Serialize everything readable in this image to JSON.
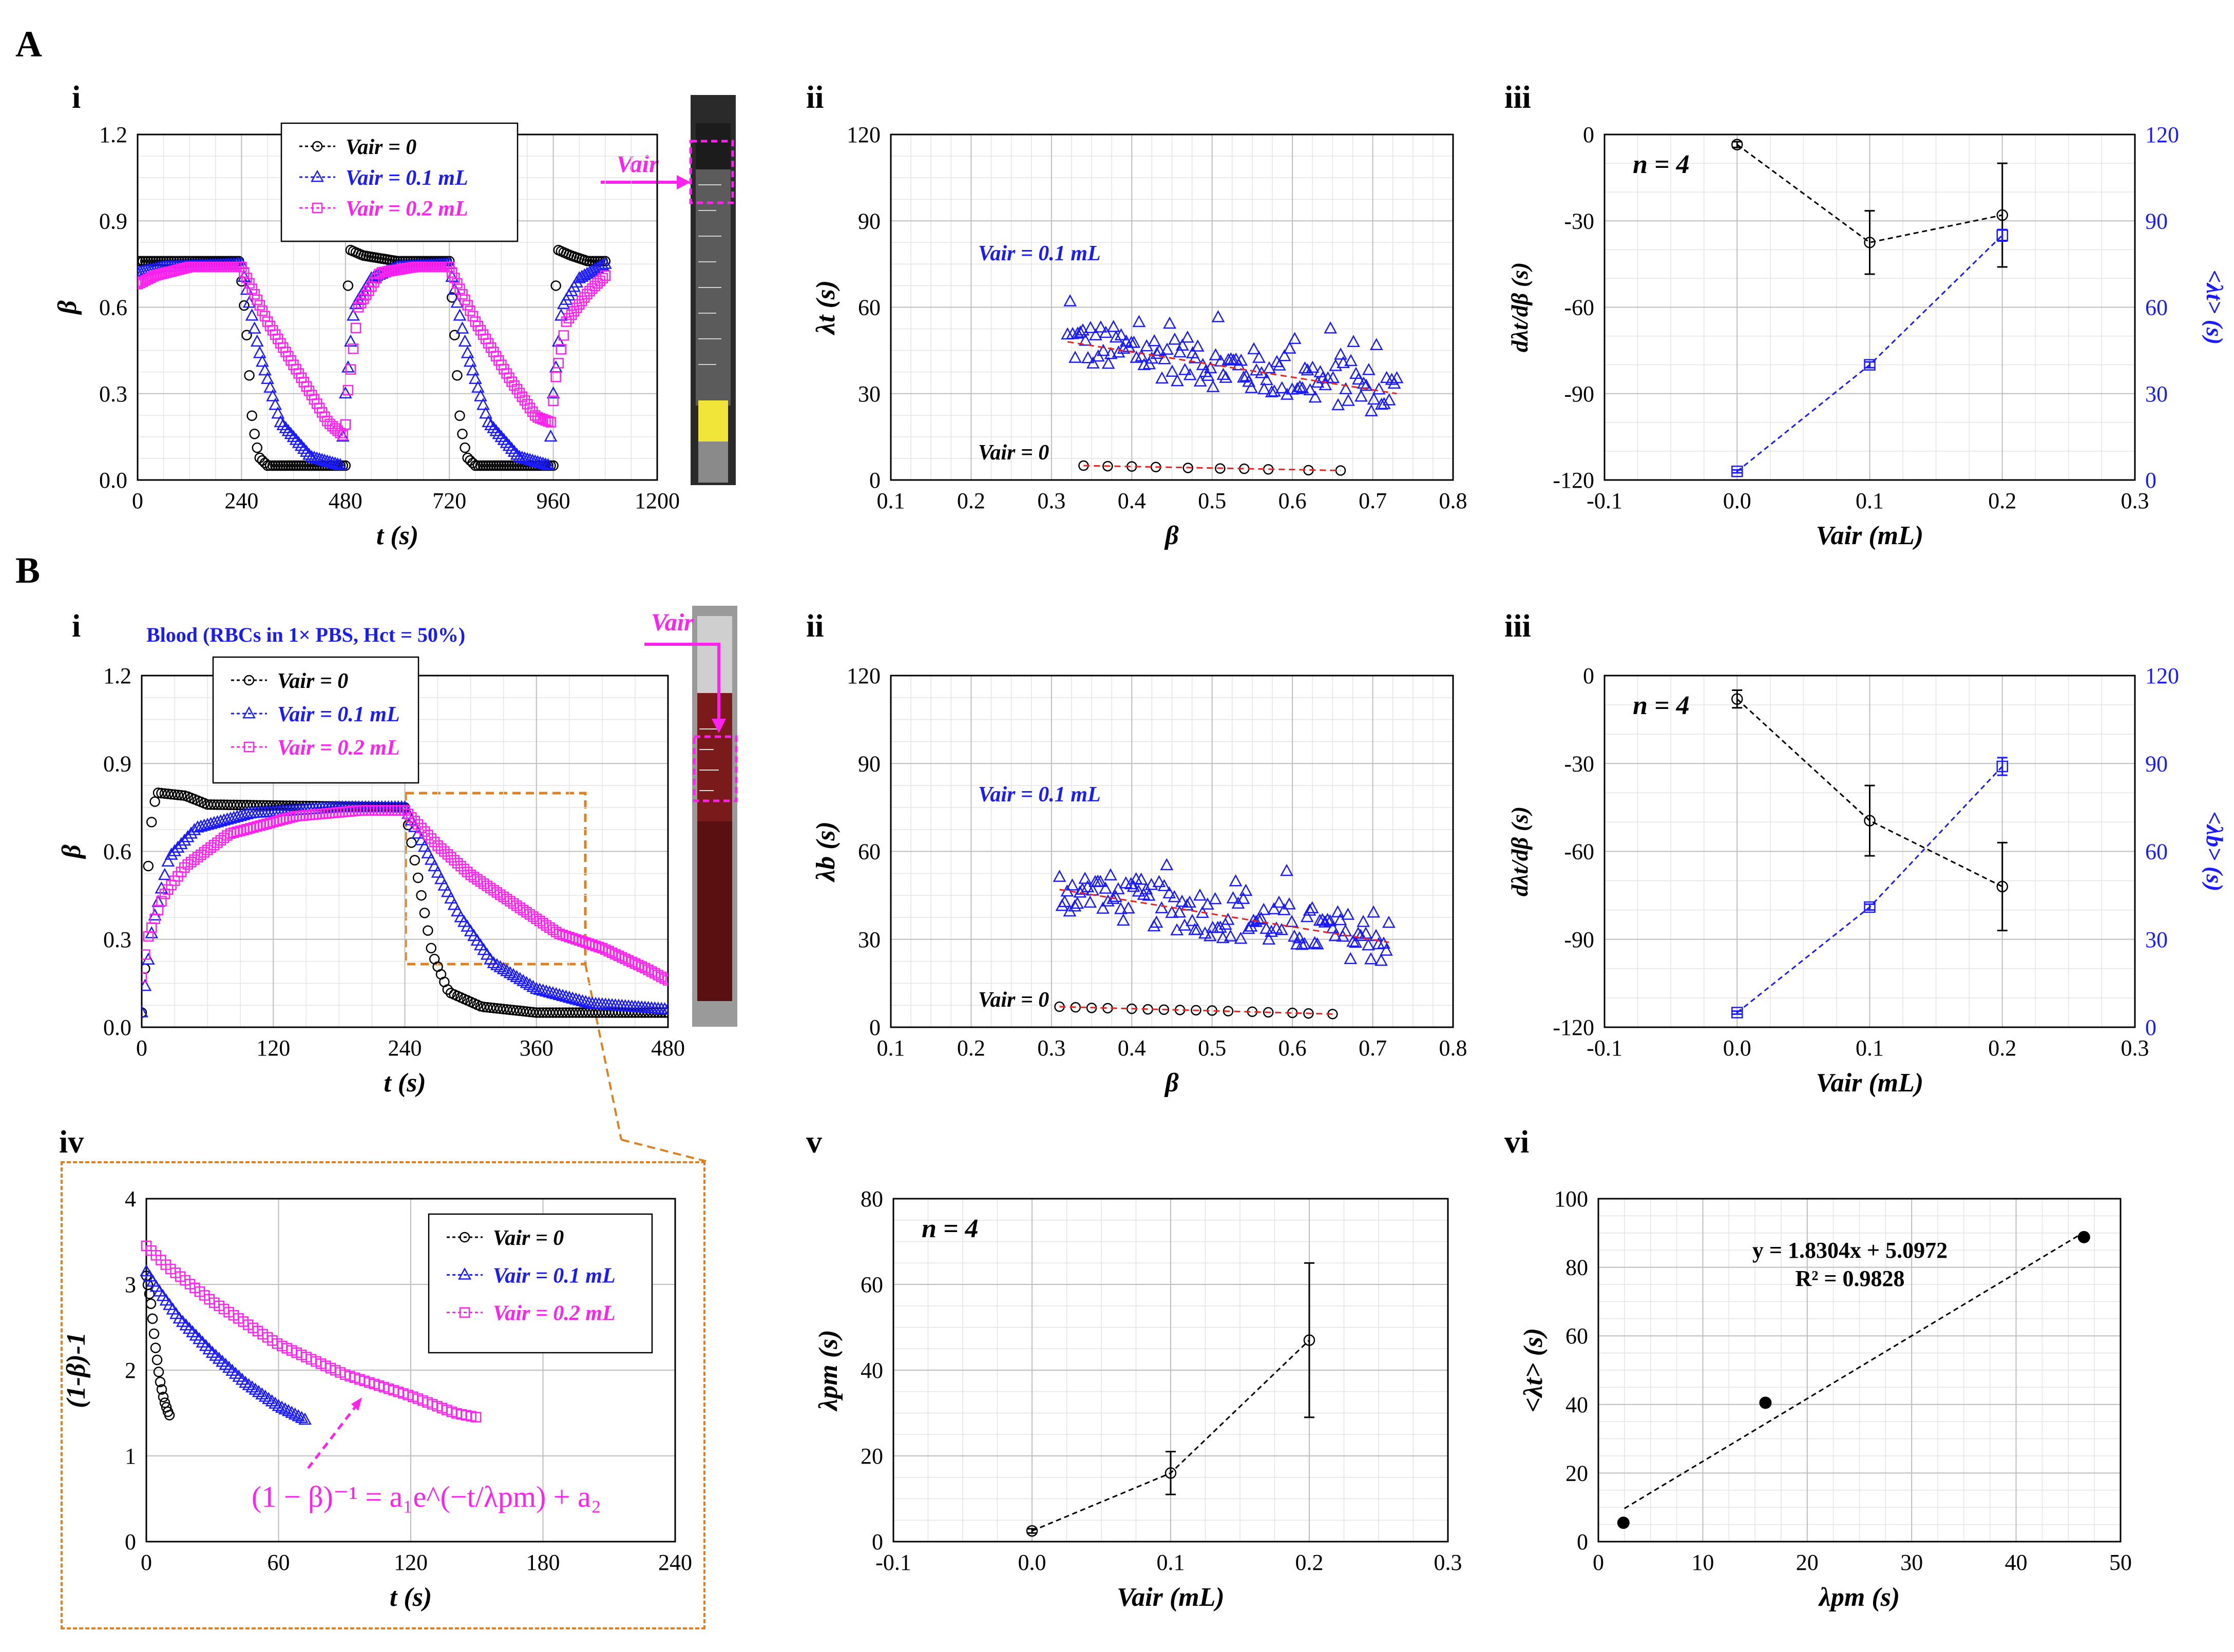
{
  "labels": {
    "section_a": "A",
    "section_b": "B",
    "panel_i": "i",
    "panel_ii": "ii",
    "panel_iii": "iii",
    "panel_iv": "iv",
    "panel_v": "v",
    "panel_vi": "vi",
    "vair_tag": "Vair",
    "blood_title": "Blood (RBCs in 1× PBS, Hct = 50%)",
    "fit_equation": "(1 − β)⁻¹ = a₁e^(−t/λpm) + a₂"
  },
  "colors": {
    "black": "#000000",
    "blue": "#1a1aff",
    "magenta": "#ff22ee",
    "red_fit": "#e8231f",
    "orange": "#e07f1d"
  },
  "chart_data": [
    {
      "id": "A-i",
      "type": "scatter",
      "xlabel": "t (s)",
      "ylabel": "β",
      "xlim": [
        0,
        1200
      ],
      "ylim": [
        0,
        1.2
      ],
      "xticks": [
        0,
        240,
        480,
        720,
        960,
        1200
      ],
      "yticks": [
        0.0,
        0.3,
        0.6,
        0.9,
        1.2
      ],
      "legend": [
        "Vair = 0",
        "Vair = 0.1 mL",
        "Vair = 0.2 mL"
      ],
      "series": [
        {
          "name": "Vair = 0",
          "marker": "circle",
          "color": "#000000",
          "keys": [
            [
              0,
              0.76
            ],
            [
              235,
              0.76
            ],
            [
              250,
              0.55
            ],
            [
              265,
              0.2
            ],
            [
              280,
              0.08
            ],
            [
              300,
              0.05
            ],
            [
              480,
              0.05
            ],
            [
              482,
              0.55
            ],
            [
              490,
              0.8
            ],
            [
              520,
              0.78
            ],
            [
              600,
              0.76
            ],
            [
              720,
              0.76
            ],
            [
              730,
              0.55
            ],
            [
              745,
              0.2
            ],
            [
              760,
              0.08
            ],
            [
              780,
              0.05
            ],
            [
              960,
              0.05
            ],
            [
              962,
              0.55
            ],
            [
              970,
              0.8
            ],
            [
              1000,
              0.78
            ],
            [
              1040,
              0.76
            ],
            [
              1080,
              0.76
            ]
          ]
        },
        {
          "name": "Vair = 0.1 mL",
          "marker": "triangle",
          "color": "#1a1aff",
          "keys": [
            [
              0,
              0.72
            ],
            [
              60,
              0.74
            ],
            [
              240,
              0.75
            ],
            [
              280,
              0.45
            ],
            [
              330,
              0.2
            ],
            [
              400,
              0.08
            ],
            [
              470,
              0.05
            ],
            [
              480,
              0.3
            ],
            [
              500,
              0.6
            ],
            [
              540,
              0.7
            ],
            [
              600,
              0.74
            ],
            [
              720,
              0.75
            ],
            [
              760,
              0.45
            ],
            [
              810,
              0.2
            ],
            [
              880,
              0.08
            ],
            [
              950,
              0.05
            ],
            [
              960,
              0.3
            ],
            [
              980,
              0.6
            ],
            [
              1020,
              0.7
            ],
            [
              1080,
              0.75
            ]
          ]
        },
        {
          "name": "Vair = 0.2 mL",
          "marker": "square",
          "color": "#ff22ee",
          "keys": [
            [
              0,
              0.68
            ],
            [
              40,
              0.71
            ],
            [
              120,
              0.74
            ],
            [
              240,
              0.74
            ],
            [
              300,
              0.55
            ],
            [
              380,
              0.35
            ],
            [
              440,
              0.2
            ],
            [
              478,
              0.15
            ],
            [
              485,
              0.3
            ],
            [
              510,
              0.6
            ],
            [
              560,
              0.72
            ],
            [
              640,
              0.74
            ],
            [
              720,
              0.74
            ],
            [
              780,
              0.55
            ],
            [
              860,
              0.35
            ],
            [
              920,
              0.22
            ],
            [
              955,
              0.2
            ],
            [
              965,
              0.35
            ],
            [
              990,
              0.55
            ],
            [
              1040,
              0.65
            ],
            [
              1080,
              0.71
            ]
          ]
        }
      ]
    },
    {
      "id": "A-ii",
      "type": "scatter",
      "xlabel": "β",
      "ylabel": "λt (s)",
      "xlim": [
        0.1,
        0.8
      ],
      "ylim": [
        0,
        120
      ],
      "xticks": [
        0.1,
        0.2,
        0.3,
        0.4,
        0.5,
        0.6,
        0.7,
        0.8
      ],
      "yticks": [
        0,
        30,
        60,
        90,
        120
      ],
      "annotations": [
        "Vair = 0.1 mL",
        "Vair = 0"
      ],
      "series": [
        {
          "name": "Vair = 0.1 mL",
          "marker": "triangle",
          "color": "#1a1aff",
          "trend": {
            "x0": 0.32,
            "y0": 48,
            "x1": 0.73,
            "y1": 30
          },
          "spread": 8,
          "count": 130,
          "xrange": [
            0.32,
            0.73
          ]
        },
        {
          "name": "Vair = 0",
          "marker": "circle",
          "color": "#000000",
          "x": [
            0.34,
            0.37,
            0.4,
            0.43,
            0.47,
            0.51,
            0.54,
            0.57,
            0.62,
            0.66
          ],
          "y": [
            5,
            4.8,
            4.7,
            4.5,
            4.2,
            4.0,
            3.9,
            3.7,
            3.4,
            3.3
          ]
        }
      ]
    },
    {
      "id": "A-iii",
      "type": "line",
      "xlabel": "Vair (mL)",
      "ylabel_left": "dλt/dβ (s)",
      "ylabel_right": "<λt> (s)",
      "xlim": [
        -0.1,
        0.3
      ],
      "ylim_left": [
        -120,
        0
      ],
      "ylim_right": [
        0,
        120
      ],
      "xticks": [
        -0.1,
        0.0,
        0.1,
        0.2,
        0.3
      ],
      "yticks_left": [
        0,
        -30,
        -60,
        -90,
        -120
      ],
      "yticks_right": [
        0,
        30,
        60,
        90,
        120
      ],
      "annotation": "n = 4",
      "series": [
        {
          "name": "dλt/dβ",
          "axis": "left",
          "marker": "circle",
          "color": "#000000",
          "x": [
            0,
            0.1,
            0.2
          ],
          "y": [
            -3.5,
            -37.5,
            -28
          ],
          "err": [
            1,
            11,
            18
          ]
        },
        {
          "name": "<λt>",
          "axis": "right",
          "marker": "square",
          "color": "#1a1aff",
          "x": [
            0,
            0.1,
            0.2
          ],
          "y": [
            3,
            40,
            85
          ],
          "err": [
            0.5,
            1,
            2
          ]
        }
      ]
    },
    {
      "id": "B-i",
      "type": "scatter",
      "xlabel": "t (s)",
      "ylabel": "β",
      "xlim": [
        0,
        480
      ],
      "ylim": [
        0,
        1.2
      ],
      "xticks": [
        0,
        120,
        240,
        360,
        480
      ],
      "yticks": [
        0.0,
        0.3,
        0.6,
        0.9,
        1.2
      ],
      "legend": [
        "Vair = 0",
        "Vair = 0.1 mL",
        "Vair = 0.2 mL"
      ],
      "series": [
        {
          "name": "Vair = 0",
          "marker": "circle",
          "color": "#000000",
          "keys": [
            [
              0,
              0.05
            ],
            [
              3,
              0.2
            ],
            [
              6,
              0.55
            ],
            [
              10,
              0.75
            ],
            [
              15,
              0.8
            ],
            [
              40,
              0.79
            ],
            [
              60,
              0.76
            ],
            [
              240,
              0.75
            ],
            [
              245,
              0.65
            ],
            [
              255,
              0.45
            ],
            [
              265,
              0.25
            ],
            [
              280,
              0.12
            ],
            [
              310,
              0.07
            ],
            [
              360,
              0.05
            ],
            [
              480,
              0.05
            ]
          ]
        },
        {
          "name": "Vair = 0.1 mL",
          "marker": "triangle",
          "color": "#1a1aff",
          "keys": [
            [
              0,
              0.05
            ],
            [
              10,
              0.35
            ],
            [
              25,
              0.58
            ],
            [
              50,
              0.68
            ],
            [
              100,
              0.73
            ],
            [
              180,
              0.75
            ],
            [
              240,
              0.75
            ],
            [
              260,
              0.6
            ],
            [
              290,
              0.38
            ],
            [
              320,
              0.22
            ],
            [
              360,
              0.13
            ],
            [
              410,
              0.08
            ],
            [
              480,
              0.06
            ]
          ]
        },
        {
          "name": "Vair = 0.2 mL",
          "marker": "square",
          "color": "#ff22ee",
          "keys": [
            [
              0,
              0.17
            ],
            [
              5,
              0.3
            ],
            [
              20,
              0.45
            ],
            [
              40,
              0.55
            ],
            [
              80,
              0.66
            ],
            [
              140,
              0.72
            ],
            [
              200,
              0.74
            ],
            [
              240,
              0.74
            ],
            [
              270,
              0.62
            ],
            [
              300,
              0.52
            ],
            [
              340,
              0.42
            ],
            [
              380,
              0.32
            ],
            [
              420,
              0.27
            ],
            [
              460,
              0.2
            ],
            [
              480,
              0.16
            ]
          ]
        }
      ]
    },
    {
      "id": "B-ii",
      "type": "scatter",
      "xlabel": "β",
      "ylabel": "λb (s)",
      "xlim": [
        0.1,
        0.8
      ],
      "ylim": [
        0,
        120
      ],
      "xticks": [
        0.1,
        0.2,
        0.3,
        0.4,
        0.5,
        0.6,
        0.7,
        0.8
      ],
      "yticks": [
        0,
        30,
        60,
        90,
        120
      ],
      "annotations": [
        "Vair = 0.1 mL",
        "Vair = 0"
      ],
      "series": [
        {
          "name": "Vair = 0.1 mL",
          "marker": "triangle",
          "color": "#1a1aff",
          "trend": {
            "x0": 0.31,
            "y0": 47,
            "x1": 0.72,
            "y1": 29
          },
          "spread": 8,
          "count": 130,
          "xrange": [
            0.31,
            0.72
          ]
        },
        {
          "name": "Vair = 0",
          "marker": "circle",
          "color": "#000000",
          "x": [
            0.31,
            0.33,
            0.35,
            0.37,
            0.4,
            0.42,
            0.44,
            0.46,
            0.48,
            0.5,
            0.52,
            0.55,
            0.57,
            0.6,
            0.62,
            0.65
          ],
          "y": [
            7,
            6.8,
            6.6,
            6.5,
            6.3,
            6.1,
            6.0,
            5.9,
            5.8,
            5.7,
            5.5,
            5.3,
            5.1,
            4.9,
            4.7,
            4.5
          ]
        }
      ]
    },
    {
      "id": "B-iii",
      "type": "line",
      "xlabel": "Vair (mL)",
      "ylabel_left": "dλt/dβ (s)",
      "ylabel_right": "<λb> (s)",
      "xlim": [
        -0.1,
        0.3
      ],
      "ylim_left": [
        -120,
        0
      ],
      "ylim_right": [
        0,
        120
      ],
      "xticks": [
        -0.1,
        0,
        0.1,
        0.2,
        0.3
      ],
      "yticks_left": [
        0,
        -30,
        -60,
        -90,
        -120
      ],
      "yticks_right": [
        0,
        30,
        60,
        90,
        120
      ],
      "annotation": "n = 4",
      "series": [
        {
          "name": "dλt/dβ",
          "axis": "left",
          "marker": "circle",
          "color": "#000000",
          "x": [
            0,
            0.1,
            0.2
          ],
          "y": [
            -8,
            -49.5,
            -72
          ],
          "err": [
            3,
            12,
            15
          ]
        },
        {
          "name": "<λb>",
          "axis": "right",
          "marker": "square",
          "color": "#1a1aff",
          "x": [
            0,
            0.1,
            0.2
          ],
          "y": [
            5,
            41,
            89
          ],
          "err": [
            0.5,
            1,
            3
          ]
        }
      ]
    },
    {
      "id": "B-iv",
      "type": "scatter",
      "xlabel": "t (s)",
      "ylabel": "(1-β)-1",
      "xlim": [
        0,
        240
      ],
      "ylim": [
        0,
        4
      ],
      "xticks": [
        0,
        60,
        120,
        180,
        240
      ],
      "yticks": [
        0,
        1,
        2,
        3,
        4
      ],
      "legend": [
        "Vair = 0",
        "Vair = 0.1 mL",
        "Vair = 0.2 mL"
      ],
      "series": [
        {
          "name": "Vair = 0",
          "marker": "circle",
          "color": "#000000",
          "keys": [
            [
              0,
              3.1
            ],
            [
              2,
              2.8
            ],
            [
              4,
              2.3
            ],
            [
              6,
              1.9
            ],
            [
              8,
              1.65
            ],
            [
              10,
              1.5
            ],
            [
              11,
              1.45
            ]
          ]
        },
        {
          "name": "Vair = 0.1 mL",
          "marker": "triangle",
          "color": "#1a1aff",
          "keys": [
            [
              0,
              3.15
            ],
            [
              5,
              2.95
            ],
            [
              15,
              2.6
            ],
            [
              30,
              2.2
            ],
            [
              45,
              1.85
            ],
            [
              60,
              1.58
            ],
            [
              72,
              1.42
            ]
          ]
        },
        {
          "name": "Vair = 0.2 mL",
          "marker": "square",
          "color": "#ff22ee",
          "keys": [
            [
              0,
              3.45
            ],
            [
              10,
              3.2
            ],
            [
              30,
              2.8
            ],
            [
              60,
              2.3
            ],
            [
              90,
              1.95
            ],
            [
              120,
              1.7
            ],
            [
              140,
              1.5
            ],
            [
              150,
              1.45
            ]
          ]
        }
      ]
    },
    {
      "id": "B-v",
      "type": "line",
      "xlabel": "Vair (mL)",
      "ylabel": "λpm (s)",
      "xlim": [
        -0.1,
        0.3
      ],
      "ylim": [
        0,
        80
      ],
      "xticks": [
        -0.1,
        0,
        0.1,
        0.2,
        0.3
      ],
      "yticks": [
        0,
        20,
        40,
        60,
        80
      ],
      "annotation": "n = 4",
      "series": [
        {
          "name": "λpm",
          "marker": "circle",
          "color": "#000000",
          "x": [
            0,
            0.1,
            0.2
          ],
          "y": [
            2.5,
            16,
            47
          ],
          "err": [
            0.5,
            5,
            18
          ]
        }
      ]
    },
    {
      "id": "B-vi",
      "type": "scatter",
      "xlabel": "λpm (s)",
      "ylabel": "<λt> (s)",
      "xlim": [
        0,
        50
      ],
      "ylim": [
        0,
        100
      ],
      "xticks": [
        0,
        10,
        20,
        30,
        40,
        50
      ],
      "yticks": [
        0,
        20,
        40,
        60,
        80,
        100
      ],
      "fit_label": "y = 1.8304x + 5.0972",
      "r2_label": "R² = 0.9828",
      "fit": {
        "slope": 1.8304,
        "intercept": 5.0972,
        "x0": 2.5,
        "x1": 46.5
      },
      "series": [
        {
          "name": "points",
          "marker": "dot",
          "color": "#000000",
          "x": [
            2.4,
            16,
            46.5
          ],
          "y": [
            5.5,
            40.5,
            88.8
          ]
        }
      ]
    }
  ]
}
